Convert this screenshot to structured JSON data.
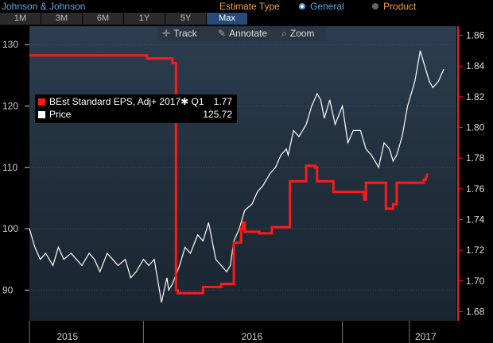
{
  "header": {
    "company": "Johnson & Johnson",
    "estimate_type_label": "Estimate Type",
    "option_general": "General",
    "option_product": "Product"
  },
  "tabs": [
    {
      "label": "1M"
    },
    {
      "label": "3M"
    },
    {
      "label": "6M"
    },
    {
      "label": "1Y"
    },
    {
      "label": "5Y"
    },
    {
      "label": "Max",
      "active": true
    }
  ],
  "toolbar": {
    "track": "Track",
    "annotate": "Annotate",
    "zoom": "Zoom"
  },
  "legend": {
    "eps_name": "BEst Standard EPS, Adj+ 2017✱ Q1",
    "eps_value": "1.77",
    "price_name": "Price",
    "price_value": "125.72"
  },
  "colors": {
    "eps": "#ff1a1a",
    "price": "#ffffff",
    "right_axis": "#ff1a1a",
    "accent": "#5aa9e6"
  },
  "icons": {
    "track": "crosshair-icon",
    "annotate": "pencil-icon",
    "zoom": "magnifier-icon"
  },
  "chart_data": {
    "type": "line",
    "x_labels": [
      "2015",
      "2016",
      "2017"
    ],
    "left_axis": {
      "ticks": [
        90,
        100,
        110,
        120,
        130
      ],
      "ylim": [
        85,
        133
      ]
    },
    "right_axis": {
      "ticks": [
        "1.68",
        "1.70",
        "1.72",
        "1.74",
        "1.76",
        "1.78",
        "1.80",
        "1.82",
        "1.84",
        "1.86"
      ],
      "ylim": [
        1.674,
        1.866
      ]
    },
    "series": [
      {
        "name": "Price",
        "axis": "left",
        "x": [
          2014.87,
          2014.9,
          2014.93,
          2014.96,
          2015.0,
          2015.03,
          2015.06,
          2015.1,
          2015.13,
          2015.16,
          2015.2,
          2015.23,
          2015.26,
          2015.3,
          2015.33,
          2015.36,
          2015.4,
          2015.43,
          2015.46,
          2015.5,
          2015.53,
          2015.56,
          2015.6,
          2015.63,
          2015.64,
          2015.66,
          2015.7,
          2015.73,
          2015.76,
          2015.8,
          2015.83,
          2015.86,
          2015.9,
          2015.93,
          2015.96,
          2015.98,
          2016.0,
          2016.03,
          2016.06,
          2016.1,
          2016.13,
          2016.16,
          2016.2,
          2016.23,
          2016.26,
          2016.29,
          2016.3,
          2016.33,
          2016.36,
          2016.4,
          2016.43,
          2016.46,
          2016.48,
          2016.5,
          2016.53,
          2016.56,
          2016.6,
          2016.63,
          2016.66,
          2016.7,
          2016.73,
          2016.76,
          2016.8,
          2016.83,
          2016.86,
          2016.88,
          2016.9,
          2016.93,
          2016.96,
          2017.0,
          2017.03,
          2017.06,
          2017.08,
          2017.1,
          2017.13,
          2017.16
        ],
        "y": [
          100,
          97,
          95,
          96,
          94,
          97,
          95,
          96,
          95,
          94,
          96,
          95,
          93,
          96,
          95,
          94,
          95,
          92,
          93,
          95,
          94,
          95,
          88,
          92,
          90,
          91,
          94,
          97,
          96,
          99,
          98,
          101,
          95,
          94,
          93,
          94,
          98,
          100,
          103,
          104,
          106,
          107,
          109,
          110,
          112,
          113,
          112,
          116,
          115,
          117,
          120,
          122,
          121,
          118,
          121,
          117,
          120,
          114,
          116,
          116,
          113,
          112,
          110,
          114,
          113,
          111,
          112,
          115,
          120,
          124,
          129,
          126,
          124,
          123,
          124,
          126
        ]
      },
      {
        "name": "BEst Standard EPS, Adj+ 2017✱ Q1",
        "axis": "right",
        "x": [
          2014.87,
          2015.52,
          2015.52,
          2015.66,
          2015.66,
          2015.68,
          2015.68,
          2015.69,
          2015.69,
          2015.83,
          2015.83,
          2015.93,
          2015.93,
          2016.0,
          2016.0,
          2016.04,
          2016.04,
          2016.05,
          2016.05,
          2016.06,
          2016.06,
          2016.14,
          2016.14,
          2016.21,
          2016.21,
          2016.31,
          2016.31,
          2016.4,
          2016.4,
          2016.45,
          2016.45,
          2016.46,
          2016.46,
          2016.55,
          2016.55,
          2016.72,
          2016.72,
          2016.73,
          2016.73,
          2016.84,
          2016.84,
          2016.88,
          2016.88,
          2016.9,
          2016.9,
          2017.05,
          2017.05,
          2017.06,
          2017.07
        ],
        "y": [
          1.847,
          1.847,
          1.845,
          1.845,
          1.842,
          1.842,
          1.694,
          1.694,
          1.692,
          1.692,
          1.696,
          1.696,
          1.698,
          1.698,
          1.725,
          1.725,
          1.734,
          1.734,
          1.738,
          1.738,
          1.732,
          1.732,
          1.731,
          1.731,
          1.735,
          1.735,
          1.765,
          1.765,
          1.775,
          1.775,
          1.774,
          1.774,
          1.765,
          1.765,
          1.758,
          1.758,
          1.753,
          1.753,
          1.764,
          1.764,
          1.747,
          1.747,
          1.75,
          1.75,
          1.764,
          1.764,
          1.766,
          1.766,
          1.77
        ]
      }
    ]
  }
}
